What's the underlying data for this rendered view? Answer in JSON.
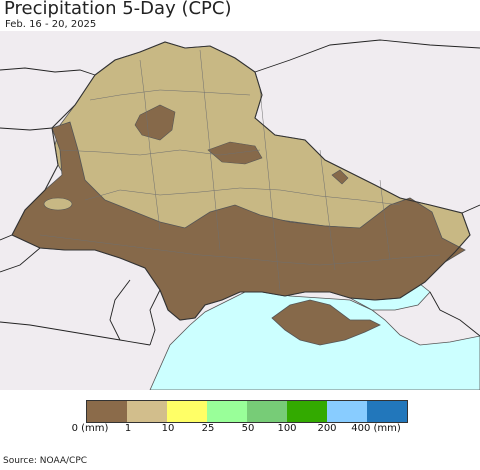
{
  "title": "Precipitation 5-Day (CPC)",
  "subtitle": "Feb. 16 - 20, 2025",
  "source": "Source: NOAA/CPC",
  "legend": {
    "colors": [
      "#8b6b4a",
      "#d2be8c",
      "#ffff66",
      "#99ff99",
      "#77cc77",
      "#33aa00",
      "#88ccff",
      "#2277bb"
    ],
    "ticks": [
      "0 (mm)",
      "1",
      "10",
      "25",
      "50",
      "100",
      "200",
      "400 (mm)"
    ]
  },
  "map": {
    "region": "Ukraine",
    "land_outside_color": "#f0ecf0",
    "sea_color": "#ccffff",
    "precip_light_color": "#c8b884",
    "precip_dry_color": "#86694a"
  }
}
